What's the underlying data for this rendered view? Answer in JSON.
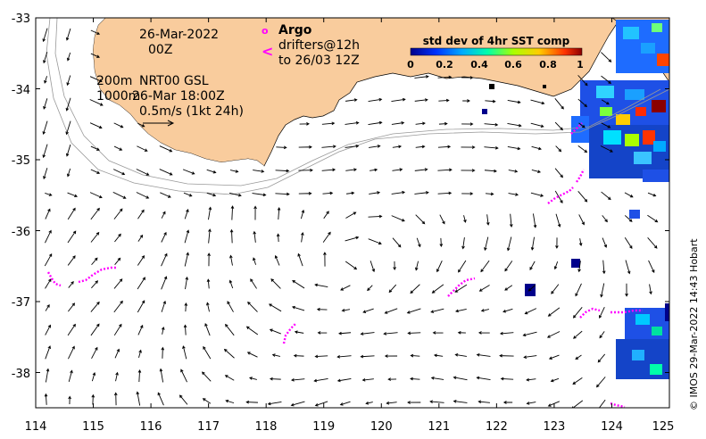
{
  "map": {
    "date_label": "26-Mar-2022",
    "time_label": "00Z",
    "model_info": {
      "line1_depth": "200m",
      "line1_text": "NRT00 GSL",
      "line2_depth": "1000m",
      "line2_text": "26-Mar 18:00Z"
    },
    "scale_label": "0.5m/s (1kt 24h)",
    "legend": {
      "argo_label": "Argo",
      "drifters_label": "drifters@12h",
      "drifters_until": "to 26/03 12Z",
      "argo_symbol": "o",
      "drifter_symbol": "<"
    },
    "colorbar": {
      "title": "std dev of 4hr SST comp",
      "ticks": [
        "0",
        "0.2",
        "0.4",
        "0.6",
        "0.8",
        "1"
      ]
    },
    "credit": "© IMOS 29-Mar-2022 14:43 Hobart",
    "x_ticks": [
      "114",
      "115",
      "116",
      "117",
      "118",
      "119",
      "120",
      "121",
      "122",
      "123",
      "124",
      "125"
    ],
    "y_ticks": [
      "-33",
      "-34",
      "-35",
      "-36",
      "-37",
      "-38"
    ],
    "lon_range": [
      114,
      125
    ],
    "lat_range": [
      -38.5,
      -33
    ],
    "colors": {
      "land": "#f9cc9d",
      "drifter": "#ff00ff",
      "argo": "#ff00ff",
      "arrow": "#000000",
      "contour": "#999999"
    }
  }
}
